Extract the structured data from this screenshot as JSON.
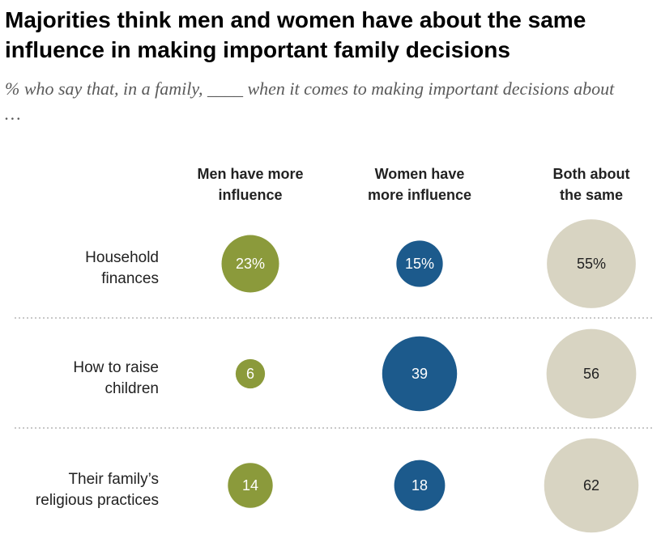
{
  "title": "Majorities think men and women have about the same influence in making important family decisions",
  "subtitle": "% who say that, in a family, ____ when it comes to making important decisions about …",
  "colors": {
    "men": "#8b9a3b",
    "women": "#1c5a8c",
    "both": "#d8d4c2",
    "divider": "#b5b5b5"
  },
  "chart_data": {
    "type": "bubble",
    "columns": [
      [
        "Men have more",
        "influence"
      ],
      [
        "Women have",
        "more influence"
      ],
      [
        "Both about",
        "the same"
      ]
    ],
    "rows": [
      {
        "label": [
          "Household",
          "finances"
        ],
        "values": [
          23,
          15,
          55
        ],
        "labels": [
          "23%",
          "15%",
          "55%"
        ]
      },
      {
        "label": [
          "How to raise",
          "children"
        ],
        "values": [
          6,
          39,
          56
        ],
        "labels": [
          "6",
          "39",
          "56"
        ]
      },
      {
        "label": [
          "Their family’s",
          "religious practices"
        ],
        "values": [
          14,
          18,
          62
        ],
        "labels": [
          "14",
          "18",
          "62"
        ]
      }
    ]
  }
}
